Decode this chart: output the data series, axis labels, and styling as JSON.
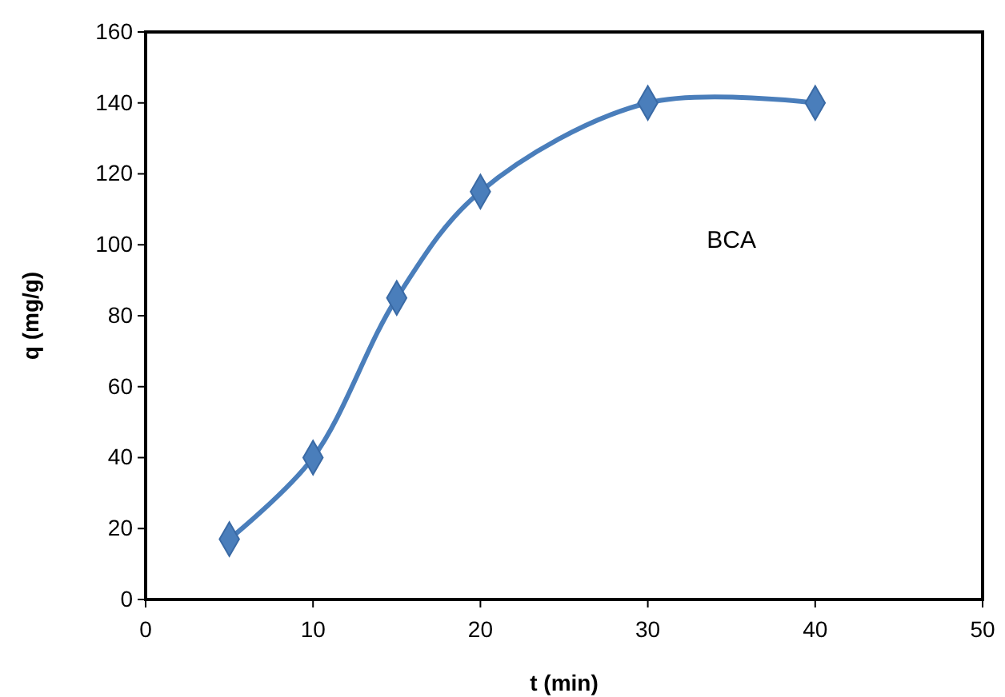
{
  "chart_data": {
    "type": "line",
    "xlabel": "t (min)",
    "ylabel": "q (mg/g)",
    "x": [
      5,
      10,
      15,
      20,
      30,
      40
    ],
    "series": [
      {
        "name": "BCA",
        "color": "#4a7ebb",
        "values": [
          17,
          40,
          85,
          115,
          140,
          140
        ]
      }
    ],
    "xlim": [
      0,
      50
    ],
    "xticks": [
      0,
      10,
      20,
      30,
      40,
      50
    ],
    "ylim": [
      0,
      160
    ],
    "yticks": [
      0,
      20,
      40,
      60,
      80,
      100,
      120,
      140,
      160
    ],
    "grid": false,
    "marker": "diamond",
    "line_style": "solid"
  }
}
